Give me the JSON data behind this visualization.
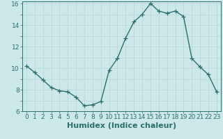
{
  "x": [
    0,
    1,
    2,
    3,
    4,
    5,
    6,
    7,
    8,
    9,
    10,
    11,
    12,
    13,
    14,
    15,
    16,
    17,
    18,
    19,
    20,
    21,
    22,
    23
  ],
  "y": [
    10.2,
    9.6,
    8.9,
    8.2,
    7.9,
    7.8,
    7.3,
    6.5,
    6.6,
    6.9,
    9.8,
    10.9,
    12.8,
    14.3,
    15.0,
    16.0,
    15.3,
    15.1,
    15.3,
    14.8,
    10.9,
    10.1,
    9.4,
    7.8
  ],
  "line_color": "#2d6e6e",
  "bg_color": "#cce8e8",
  "grid_color": "#b8d4d4",
  "xlabel": "Humidex (Indice chaleur)",
  "xlim": [
    -0.5,
    23.5
  ],
  "ylim": [
    6,
    16.2
  ],
  "yticks": [
    6,
    7,
    8,
    9,
    10,
    11,
    12,
    13,
    14,
    15,
    16
  ],
  "ytick_labels": [
    "6",
    "",
    "8",
    "",
    "10",
    "",
    "12",
    "",
    "14",
    "",
    "16"
  ],
  "xticks": [
    0,
    1,
    2,
    3,
    4,
    5,
    6,
    7,
    8,
    9,
    10,
    11,
    12,
    13,
    14,
    15,
    16,
    17,
    18,
    19,
    20,
    21,
    22,
    23
  ],
  "marker": "+",
  "marker_size": 4,
  "linewidth": 1.0,
  "xlabel_fontsize": 8,
  "tick_fontsize": 6.5
}
